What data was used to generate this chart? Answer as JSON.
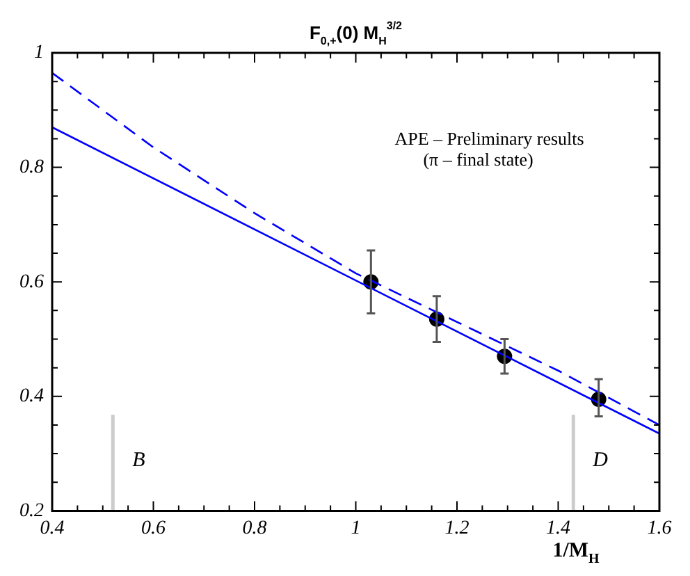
{
  "chart_data": {
    "type": "scatter",
    "title": "F$_{0,+}$(0) M$_{H}$$^{3/2}$",
    "xlabel": "1/M$_{H}$",
    "xlim": [
      0.4,
      1.6
    ],
    "xticks": [
      0.4,
      {
        "value": 0.45,
        "label": null
      },
      {
        "value": 0.5,
        "label": null
      },
      {
        "value": 0.55,
        "label": null
      },
      0.6,
      {
        "value": 0.65,
        "label": null
      },
      {
        "value": 0.7,
        "label": null
      },
      {
        "value": 0.75,
        "label": null
      },
      0.8,
      {
        "value": 0.85,
        "label": null
      },
      {
        "value": 0.9,
        "label": null
      },
      {
        "value": 0.95,
        "label": null
      },
      1,
      {
        "value": 1.05,
        "label": null
      },
      {
        "value": 1.1,
        "label": null
      },
      {
        "value": 1.15,
        "label": null
      },
      1.2,
      {
        "value": 1.25,
        "label": null
      },
      {
        "value": 1.3,
        "label": null
      },
      {
        "value": 1.35,
        "label": null
      },
      1.4,
      {
        "value": 1.45,
        "label": null
      },
      {
        "value": 1.5,
        "label": null
      },
      {
        "value": 1.55,
        "label": null
      },
      1.6
    ],
    "ylim": [
      0.2,
      1
    ],
    "yticks": [
      0.2,
      {
        "value": 0.25,
        "label": null
      },
      {
        "value": 0.3,
        "label": null
      },
      {
        "value": 0.35,
        "label": null
      },
      0.4,
      {
        "value": 0.45,
        "label": null
      },
      {
        "value": 0.5,
        "label": null
      },
      {
        "value": 0.55,
        "label": null
      },
      0.6,
      {
        "value": 0.65,
        "label": null
      },
      {
        "value": 0.7,
        "label": null
      },
      {
        "value": 0.75,
        "label": null
      },
      0.8,
      {
        "value": 0.85,
        "label": null
      },
      {
        "value": 0.9,
        "label": null
      },
      {
        "value": 0.95,
        "label": null
      },
      1
    ],
    "series": [
      {
        "type": "line",
        "color": "#0000ff",
        "line_style": "solid",
        "marker": "none",
        "x": [
          0.4,
          1.6
        ],
        "values": [
          0.87,
          0.335
        ]
      },
      {
        "type": "line",
        "color": "#0000ff",
        "line_style": "dashed",
        "marker": "none",
        "x": [
          0.4,
          0.6,
          0.8,
          1.0,
          1.2,
          1.4,
          1.6
        ],
        "values": [
          0.965,
          0.835,
          0.72,
          0.615,
          0.53,
          0.445,
          0.35
        ]
      },
      {
        "color": "#000000",
        "marker": "circle",
        "x": [
          1.03,
          1.16,
          1.294,
          1.48
        ],
        "values": [
          0.6,
          0.535,
          0.47,
          0.395
        ],
        "errors": [
          [
            0.545,
            0.655
          ],
          [
            0.495,
            0.575
          ],
          [
            0.44,
            0.5
          ],
          [
            0.365,
            0.43
          ]
        ]
      }
    ],
    "ref_lines": [
      {
        "axis": "x",
        "value": 0.52,
        "label": "B",
        "color": "#cccccc"
      },
      {
        "axis": "x",
        "value": 1.43,
        "label": "D",
        "color": "#cccccc"
      }
    ],
    "annotations": [
      "APE – Preliminary results",
      "(π – final state)"
    ],
    "grid": false,
    "legend": false
  }
}
